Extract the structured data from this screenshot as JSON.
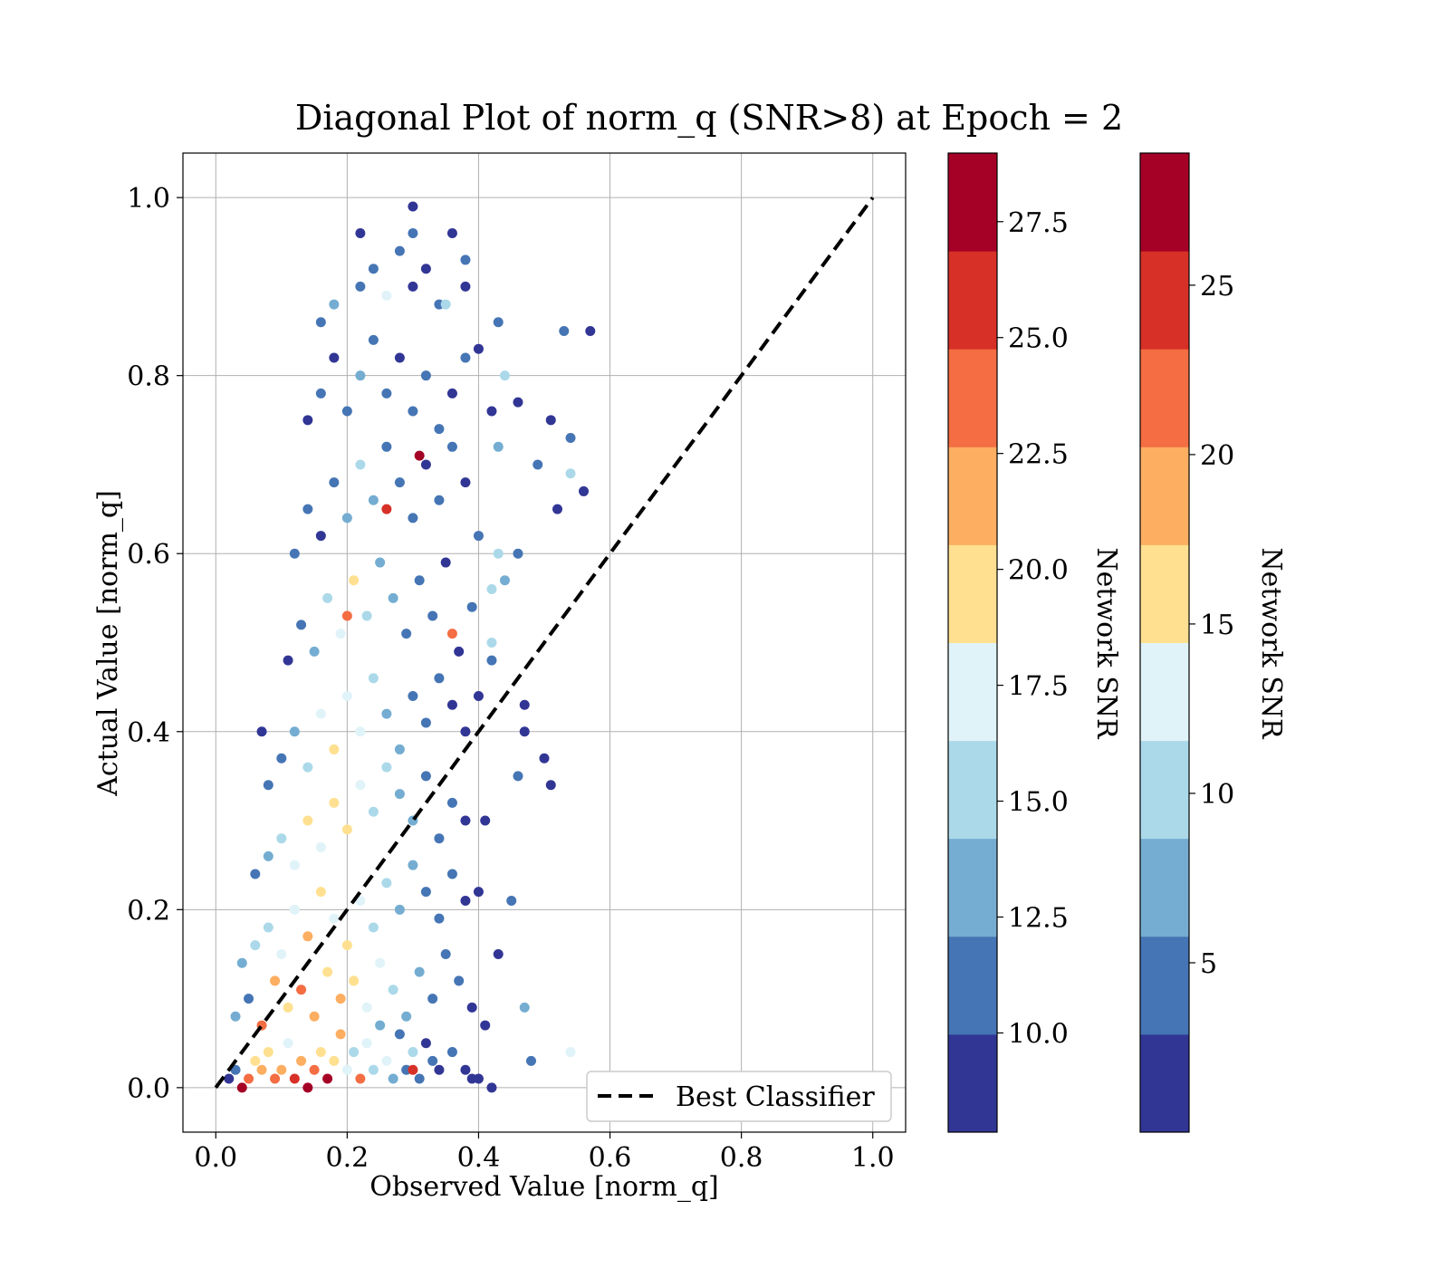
{
  "chart_data": {
    "type": "scatter",
    "title": "Diagonal Plot of norm_q (SNR>8) at Epoch = 2",
    "xlabel": "Observed Value [norm_q]",
    "ylabel": "Actual Value [norm_q]",
    "xlim": [
      -0.05,
      1.05
    ],
    "ylim": [
      -0.05,
      1.05
    ],
    "xticks": [
      0.0,
      0.2,
      0.4,
      0.6,
      0.8,
      1.0
    ],
    "yticks": [
      0.0,
      0.2,
      0.4,
      0.6,
      0.8,
      1.0
    ],
    "xtick_labels": [
      "0.0",
      "0.2",
      "0.4",
      "0.6",
      "0.8",
      "1.0"
    ],
    "ytick_labels": [
      "0.0",
      "0.2",
      "0.4",
      "0.6",
      "0.8",
      "1.0"
    ],
    "grid": true,
    "legend": {
      "position": "lower-right",
      "entries": [
        {
          "label": "Best Classifier",
          "style": "black dashed line"
        }
      ]
    },
    "reference_line": {
      "name": "Best Classifier",
      "x": [
        0.0,
        1.0
      ],
      "y": [
        0.0,
        1.0
      ]
    },
    "scatter_summary": "Dense cloud of points concentrated at observed 0.0-0.4, actual 0.0-0.95; colored by Network SNR (RdYlBu_r)",
    "points": [
      [
        0.02,
        0.01,
        9
      ],
      [
        0.03,
        0.02,
        11
      ],
      [
        0.04,
        0.0,
        28
      ],
      [
        0.05,
        0.01,
        23
      ],
      [
        0.06,
        0.03,
        20
      ],
      [
        0.07,
        0.02,
        22
      ],
      [
        0.08,
        0.04,
        19
      ],
      [
        0.09,
        0.01,
        24
      ],
      [
        0.1,
        0.02,
        21
      ],
      [
        0.11,
        0.05,
        18
      ],
      [
        0.12,
        0.01,
        25
      ],
      [
        0.13,
        0.03,
        22
      ],
      [
        0.14,
        0.0,
        28
      ],
      [
        0.15,
        0.02,
        23
      ],
      [
        0.16,
        0.04,
        20
      ],
      [
        0.17,
        0.01,
        27
      ],
      [
        0.18,
        0.03,
        19
      ],
      [
        0.19,
        0.06,
        21
      ],
      [
        0.2,
        0.02,
        17
      ],
      [
        0.21,
        0.04,
        16
      ],
      [
        0.22,
        0.01,
        23
      ],
      [
        0.23,
        0.05,
        18
      ],
      [
        0.24,
        0.02,
        15
      ],
      [
        0.25,
        0.07,
        14
      ],
      [
        0.26,
        0.03,
        17
      ],
      [
        0.27,
        0.01,
        13
      ],
      [
        0.28,
        0.06,
        12
      ],
      [
        0.29,
        0.02,
        11
      ],
      [
        0.3,
        0.04,
        16
      ],
      [
        0.31,
        0.01,
        10
      ],
      [
        0.32,
        0.05,
        9
      ],
      [
        0.33,
        0.03,
        12
      ],
      [
        0.34,
        0.02,
        9
      ],
      [
        0.36,
        0.04,
        10
      ],
      [
        0.38,
        0.02,
        9
      ],
      [
        0.4,
        0.01,
        9
      ],
      [
        0.42,
        0.0,
        9
      ],
      [
        0.03,
        0.08,
        13
      ],
      [
        0.05,
        0.1,
        12
      ],
      [
        0.07,
        0.07,
        23
      ],
      [
        0.09,
        0.12,
        22
      ],
      [
        0.11,
        0.09,
        20
      ],
      [
        0.13,
        0.11,
        23
      ],
      [
        0.15,
        0.08,
        21
      ],
      [
        0.17,
        0.13,
        19
      ],
      [
        0.19,
        0.1,
        22
      ],
      [
        0.21,
        0.12,
        20
      ],
      [
        0.23,
        0.09,
        18
      ],
      [
        0.25,
        0.14,
        17
      ],
      [
        0.27,
        0.11,
        16
      ],
      [
        0.29,
        0.08,
        14
      ],
      [
        0.31,
        0.13,
        13
      ],
      [
        0.33,
        0.1,
        12
      ],
      [
        0.35,
        0.15,
        11
      ],
      [
        0.37,
        0.12,
        10
      ],
      [
        0.39,
        0.09,
        9
      ],
      [
        0.41,
        0.07,
        9
      ],
      [
        0.04,
        0.14,
        14
      ],
      [
        0.06,
        0.16,
        15
      ],
      [
        0.08,
        0.18,
        16
      ],
      [
        0.1,
        0.15,
        17
      ],
      [
        0.12,
        0.2,
        18
      ],
      [
        0.14,
        0.17,
        22
      ],
      [
        0.16,
        0.22,
        20
      ],
      [
        0.18,
        0.19,
        18
      ],
      [
        0.2,
        0.16,
        19
      ],
      [
        0.22,
        0.21,
        17
      ],
      [
        0.24,
        0.18,
        16
      ],
      [
        0.26,
        0.23,
        15
      ],
      [
        0.28,
        0.2,
        14
      ],
      [
        0.3,
        0.25,
        13
      ],
      [
        0.32,
        0.22,
        12
      ],
      [
        0.34,
        0.19,
        11
      ],
      [
        0.36,
        0.24,
        10
      ],
      [
        0.38,
        0.21,
        9
      ],
      [
        0.4,
        0.22,
        9
      ],
      [
        0.45,
        0.21,
        12
      ],
      [
        0.06,
        0.24,
        11
      ],
      [
        0.08,
        0.26,
        13
      ],
      [
        0.1,
        0.28,
        15
      ],
      [
        0.12,
        0.25,
        17
      ],
      [
        0.14,
        0.3,
        19
      ],
      [
        0.16,
        0.27,
        18
      ],
      [
        0.18,
        0.32,
        20
      ],
      [
        0.2,
        0.29,
        19
      ],
      [
        0.22,
        0.34,
        17
      ],
      [
        0.24,
        0.31,
        16
      ],
      [
        0.26,
        0.36,
        15
      ],
      [
        0.28,
        0.33,
        14
      ],
      [
        0.3,
        0.3,
        13
      ],
      [
        0.32,
        0.35,
        12
      ],
      [
        0.34,
        0.28,
        11
      ],
      [
        0.36,
        0.32,
        10
      ],
      [
        0.38,
        0.3,
        9
      ],
      [
        0.41,
        0.3,
        9
      ],
      [
        0.08,
        0.34,
        10
      ],
      [
        0.1,
        0.37,
        12
      ],
      [
        0.12,
        0.4,
        14
      ],
      [
        0.14,
        0.36,
        16
      ],
      [
        0.16,
        0.42,
        18
      ],
      [
        0.18,
        0.38,
        19
      ],
      [
        0.2,
        0.44,
        18
      ],
      [
        0.22,
        0.4,
        17
      ],
      [
        0.24,
        0.46,
        15
      ],
      [
        0.26,
        0.42,
        14
      ],
      [
        0.28,
        0.38,
        13
      ],
      [
        0.3,
        0.44,
        12
      ],
      [
        0.32,
        0.41,
        11
      ],
      [
        0.34,
        0.46,
        10
      ],
      [
        0.36,
        0.43,
        9
      ],
      [
        0.38,
        0.4,
        9
      ],
      [
        0.4,
        0.44,
        9
      ],
      [
        0.47,
        0.43,
        9
      ],
      [
        0.47,
        0.4,
        9
      ],
      [
        0.5,
        0.37,
        9
      ],
      [
        0.51,
        0.34,
        9
      ],
      [
        0.46,
        0.35,
        11
      ],
      [
        0.07,
        0.4,
        9
      ],
      [
        0.11,
        0.48,
        9
      ],
      [
        0.13,
        0.52,
        11
      ],
      [
        0.15,
        0.49,
        13
      ],
      [
        0.17,
        0.55,
        15
      ],
      [
        0.19,
        0.51,
        17
      ],
      [
        0.21,
        0.57,
        19
      ],
      [
        0.23,
        0.53,
        16
      ],
      [
        0.25,
        0.59,
        14
      ],
      [
        0.27,
        0.55,
        13
      ],
      [
        0.29,
        0.51,
        12
      ],
      [
        0.31,
        0.57,
        11
      ],
      [
        0.33,
        0.53,
        10
      ],
      [
        0.35,
        0.59,
        9
      ],
      [
        0.37,
        0.49,
        9
      ],
      [
        0.39,
        0.54,
        10
      ],
      [
        0.42,
        0.48,
        11
      ],
      [
        0.42,
        0.5,
        15
      ],
      [
        0.42,
        0.56,
        16
      ],
      [
        0.43,
        0.6,
        15
      ],
      [
        0.44,
        0.57,
        13
      ],
      [
        0.46,
        0.6,
        12
      ],
      [
        0.36,
        0.51,
        23
      ],
      [
        0.2,
        0.53,
        23
      ],
      [
        0.12,
        0.6,
        10
      ],
      [
        0.14,
        0.65,
        11
      ],
      [
        0.16,
        0.62,
        9
      ],
      [
        0.18,
        0.68,
        12
      ],
      [
        0.2,
        0.64,
        14
      ],
      [
        0.22,
        0.7,
        16
      ],
      [
        0.24,
        0.66,
        13
      ],
      [
        0.26,
        0.72,
        11
      ],
      [
        0.28,
        0.68,
        10
      ],
      [
        0.3,
        0.64,
        12
      ],
      [
        0.32,
        0.7,
        9
      ],
      [
        0.34,
        0.66,
        11
      ],
      [
        0.36,
        0.72,
        10
      ],
      [
        0.38,
        0.68,
        9
      ],
      [
        0.4,
        0.62,
        12
      ],
      [
        0.26,
        0.65,
        26
      ],
      [
        0.31,
        0.71,
        27
      ],
      [
        0.14,
        0.75,
        9
      ],
      [
        0.16,
        0.78,
        10
      ],
      [
        0.18,
        0.82,
        9
      ],
      [
        0.2,
        0.76,
        11
      ],
      [
        0.22,
        0.8,
        13
      ],
      [
        0.24,
        0.84,
        12
      ],
      [
        0.26,
        0.78,
        10
      ],
      [
        0.28,
        0.82,
        9
      ],
      [
        0.3,
        0.76,
        11
      ],
      [
        0.32,
        0.8,
        10
      ],
      [
        0.34,
        0.74,
        12
      ],
      [
        0.36,
        0.78,
        9
      ],
      [
        0.38,
        0.82,
        10
      ],
      [
        0.4,
        0.83,
        9
      ],
      [
        0.42,
        0.76,
        9
      ],
      [
        0.43,
        0.72,
        13
      ],
      [
        0.44,
        0.8,
        15
      ],
      [
        0.46,
        0.77,
        9
      ],
      [
        0.49,
        0.7,
        11
      ],
      [
        0.51,
        0.75,
        9
      ],
      [
        0.52,
        0.65,
        9
      ],
      [
        0.54,
        0.73,
        12
      ],
      [
        0.54,
        0.69,
        16
      ],
      [
        0.56,
        0.67,
        9
      ],
      [
        0.43,
        0.86,
        11
      ],
      [
        0.53,
        0.85,
        12
      ],
      [
        0.57,
        0.85,
        9
      ],
      [
        0.16,
        0.86,
        10
      ],
      [
        0.18,
        0.88,
        14
      ],
      [
        0.22,
        0.9,
        11
      ],
      [
        0.24,
        0.92,
        12
      ],
      [
        0.26,
        0.89,
        18
      ],
      [
        0.28,
        0.94,
        11
      ],
      [
        0.3,
        0.9,
        9
      ],
      [
        0.32,
        0.92,
        9
      ],
      [
        0.34,
        0.88,
        12
      ],
      [
        0.38,
        0.93,
        12
      ],
      [
        0.38,
        0.9,
        9
      ],
      [
        0.22,
        0.96,
        9
      ],
      [
        0.3,
        0.96,
        12
      ],
      [
        0.36,
        0.96,
        9
      ],
      [
        0.3,
        0.99,
        9
      ],
      [
        0.35,
        0.88,
        16
      ],
      [
        0.54,
        0.04,
        17
      ],
      [
        0.47,
        0.09,
        13
      ],
      [
        0.48,
        0.03,
        12
      ],
      [
        0.39,
        0.01,
        9
      ],
      [
        0.43,
        0.15,
        9
      ],
      [
        0.3,
        0.02,
        26
      ]
    ]
  },
  "colorbars": [
    {
      "label": "Network SNR",
      "range": [
        7.86,
        28.98
      ],
      "ticks": [
        10.0,
        12.5,
        15.0,
        17.5,
        20.0,
        22.5,
        25.0,
        27.5
      ],
      "tick_labels": [
        "10.0",
        "12.5",
        "15.0",
        "17.5",
        "20.0",
        "22.5",
        "25.0",
        "27.5"
      ],
      "colors": [
        "#313695",
        "#4575b4",
        "#74add1",
        "#abd9e9",
        "#e0f3f8",
        "#fee090",
        "#fdae61",
        "#f46d43",
        "#d73027",
        "#a50026"
      ]
    },
    {
      "label": "Network SNR",
      "range": [
        0.0,
        28.9
      ],
      "ticks": [
        5,
        10,
        15,
        20,
        25
      ],
      "tick_labels": [
        "5",
        "10",
        "15",
        "20",
        "25"
      ],
      "colors": [
        "#313695",
        "#4575b4",
        "#74add1",
        "#abd9e9",
        "#e0f3f8",
        "#fee090",
        "#fdae61",
        "#f46d43",
        "#d73027",
        "#a50026"
      ]
    }
  ]
}
